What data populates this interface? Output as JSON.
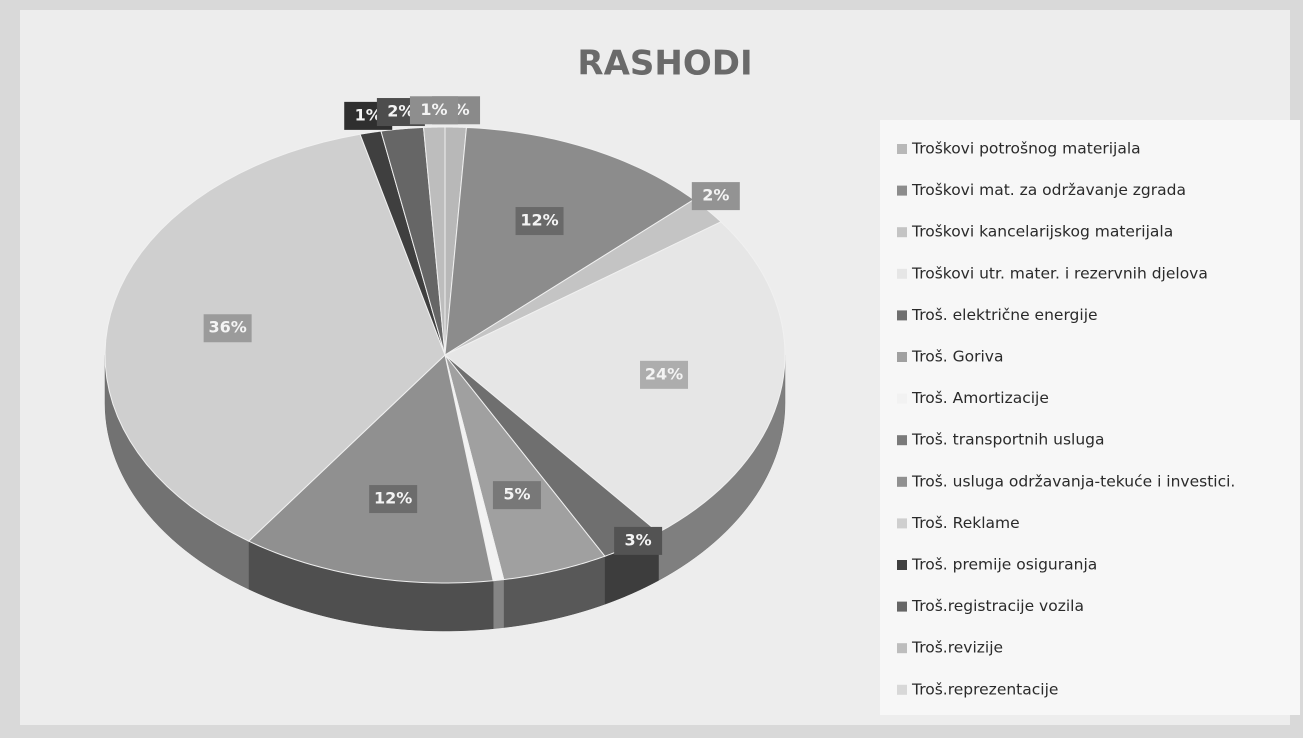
{
  "chart_data": {
    "type": "pie",
    "title": "RASHODI",
    "categories": [
      "Troškovi potrošnog materijala",
      "Troškovi mat. za održavanje zgrada",
      "Troškovi kancelarijskog materijala",
      "Troškovi utr. mater. i rezervnih djelova",
      "Troš. električne energije",
      "Troš. Goriva",
      "Troš. Amortizacije",
      "Troš. transportnih usluga",
      "Troš. usluga održavanja-tekuće i investici.",
      "Troš. Reklame",
      "Troš. premije osiguranja",
      "Troš.registracije vozila",
      "Troš.revizije",
      "Troš.reprezentacije"
    ],
    "values": [
      1,
      12,
      2,
      24,
      3,
      5,
      0.5,
      0,
      12,
      36,
      1,
      2,
      1,
      0
    ],
    "value_labels": [
      "1%",
      "12%",
      "2%",
      "24%",
      "3%",
      "5%",
      null,
      null,
      "12%",
      "36%",
      "1%",
      "2%",
      "1%",
      null
    ],
    "colors": [
      "#b8b8b8",
      "#8c8c8c",
      "#c4c4c4",
      "#e6e6e6",
      "#6f6f6f",
      "#a0a0a0",
      "#f2f2f2",
      "#7a7a7a",
      "#909090",
      "#cfcfcf",
      "#3f3f3f",
      "#666666",
      "#bdbdbd",
      "#d8d8d8"
    ],
    "legend": "right"
  }
}
